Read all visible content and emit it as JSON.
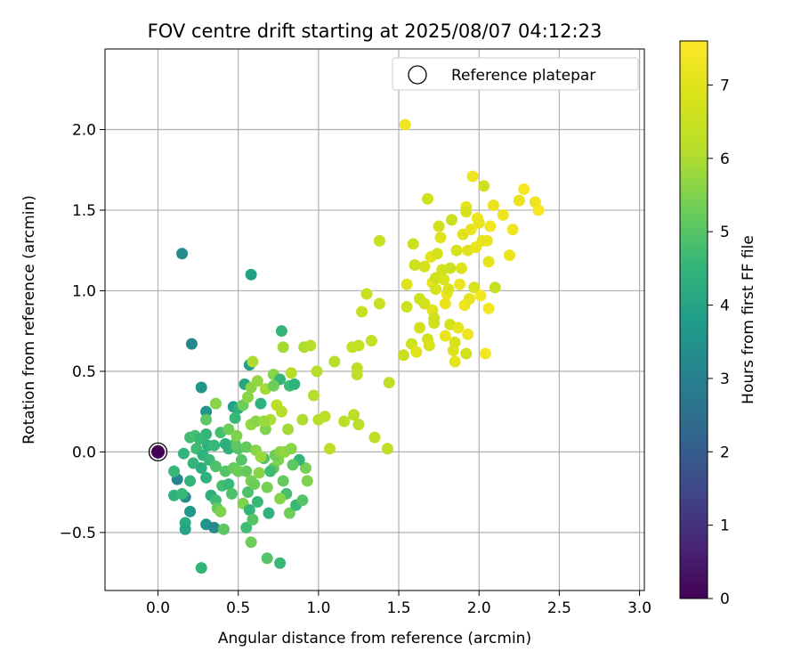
{
  "chart_data": {
    "type": "scatter",
    "title": "FOV centre drift starting at 2025/08/07 04:12:23",
    "xlabel": "Angular distance from reference (arcmin)",
    "ylabel": "Rotation from reference (arcmin)",
    "xlim": [
      -0.33,
      3.03
    ],
    "ylim": [
      -0.86,
      2.5
    ],
    "xticks": [
      0.0,
      0.5,
      1.0,
      1.5,
      2.0,
      2.5,
      3.0
    ],
    "xtick_labels": [
      "0.0",
      "0.5",
      "1.0",
      "1.5",
      "2.0",
      "2.5",
      "3.0"
    ],
    "yticks": [
      -0.5,
      0.0,
      0.5,
      1.0,
      1.5,
      2.0
    ],
    "ytick_labels": [
      "−0.5",
      "0.0",
      "0.5",
      "1.0",
      "1.5",
      "2.0"
    ],
    "grid": true,
    "legend": {
      "position": "top-right",
      "entries": [
        {
          "label": "Reference platepar",
          "marker": "open-circle"
        }
      ]
    },
    "colorbar": {
      "label": "Hours from first FF file",
      "colormap": "viridis",
      "range": [
        0,
        7.6
      ],
      "ticks": [
        0,
        1,
        2,
        3,
        4,
        5,
        6,
        7
      ],
      "tick_labels": [
        "0",
        "1",
        "2",
        "3",
        "4",
        "5",
        "6",
        "7"
      ]
    },
    "reference_point": {
      "x": 0.0,
      "y": 0.0,
      "c": 0.0
    },
    "series": [
      {
        "points": [
          [
            0.15,
            1.23,
            3.3
          ],
          [
            0.58,
            1.1,
            3.9
          ],
          [
            0.21,
            0.67,
            3.2
          ],
          [
            0.27,
            0.4,
            3.6
          ],
          [
            0.3,
            0.25,
            3.5
          ],
          [
            0.12,
            -0.17,
            3.1
          ],
          [
            0.17,
            -0.28,
            3.3
          ],
          [
            0.2,
            -0.37,
            3.6
          ],
          [
            0.17,
            -0.44,
            4.2
          ],
          [
            0.17,
            -0.48,
            4.0
          ],
          [
            0.3,
            -0.45,
            3.5
          ],
          [
            0.35,
            -0.47,
            3.3
          ],
          [
            0.27,
            -0.72,
            4.5
          ],
          [
            0.1,
            -0.27,
            4.4
          ],
          [
            0.15,
            -0.26,
            4.6
          ],
          [
            0.1,
            -0.12,
            4.6
          ],
          [
            0.16,
            -0.01,
            4.5
          ],
          [
            0.2,
            0.09,
            4.7
          ],
          [
            0.23,
            0.1,
            4.8
          ],
          [
            0.26,
            0.08,
            4.6
          ],
          [
            0.3,
            0.11,
            4.5
          ],
          [
            0.31,
            0.04,
            4.4
          ],
          [
            0.24,
            0.02,
            4.7
          ],
          [
            0.28,
            -0.02,
            4.4
          ],
          [
            0.22,
            -0.07,
            4.5
          ],
          [
            0.27,
            -0.1,
            4.3
          ],
          [
            0.32,
            -0.05,
            4.6
          ],
          [
            0.36,
            -0.09,
            4.9
          ],
          [
            0.3,
            -0.16,
            4.4
          ],
          [
            0.2,
            -0.18,
            4.5
          ],
          [
            0.33,
            -0.27,
            4.3
          ],
          [
            0.36,
            -0.3,
            4.7
          ],
          [
            0.37,
            -0.35,
            5.2
          ],
          [
            0.39,
            -0.37,
            5.5
          ],
          [
            0.41,
            -0.48,
            5.1
          ],
          [
            0.4,
            -0.21,
            4.8
          ],
          [
            0.44,
            -0.2,
            4.6
          ],
          [
            0.46,
            -0.26,
            4.9
          ],
          [
            0.42,
            -0.12,
            5.0
          ],
          [
            0.47,
            -0.1,
            5.2
          ],
          [
            0.5,
            -0.12,
            5.3
          ],
          [
            0.52,
            -0.05,
            5.0
          ],
          [
            0.55,
            -0.12,
            5.2
          ],
          [
            0.58,
            -0.18,
            5.4
          ],
          [
            0.56,
            -0.25,
            4.9
          ],
          [
            0.53,
            -0.32,
            5.5
          ],
          [
            0.55,
            -0.47,
            4.7
          ],
          [
            0.57,
            -0.36,
            4.5
          ],
          [
            0.59,
            -0.42,
            5.0
          ],
          [
            0.62,
            -0.31,
            4.6
          ],
          [
            0.6,
            -0.2,
            5.3
          ],
          [
            0.63,
            -0.13,
            5.6
          ],
          [
            0.58,
            -0.56,
            5.3
          ],
          [
            0.69,
            -0.38,
            4.4
          ],
          [
            0.68,
            -0.66,
            5.0
          ],
          [
            0.76,
            -0.69,
            4.6
          ],
          [
            0.72,
            -0.1,
            5.2
          ],
          [
            0.75,
            -0.05,
            5.5
          ],
          [
            0.78,
            -0.18,
            5.2
          ],
          [
            0.8,
            -0.26,
            4.8
          ],
          [
            0.82,
            -0.38,
            5.3
          ],
          [
            0.86,
            -0.33,
            4.6
          ],
          [
            0.9,
            -0.3,
            5.0
          ],
          [
            0.92,
            -0.1,
            5.4
          ],
          [
            0.93,
            -0.18,
            5.5
          ],
          [
            0.76,
            -0.29,
            5.6
          ],
          [
            0.68,
            -0.22,
            5.4
          ],
          [
            0.66,
            -0.04,
            4.9
          ],
          [
            0.7,
            -0.12,
            4.7
          ],
          [
            0.73,
            -0.02,
            5.3
          ],
          [
            0.76,
            0.0,
            5.6
          ],
          [
            0.79,
            0.0,
            5.7
          ],
          [
            0.83,
            0.02,
            5.6
          ],
          [
            0.88,
            -0.05,
            4.5
          ],
          [
            0.84,
            -0.08,
            5.1
          ],
          [
            0.44,
            0.02,
            4.4
          ],
          [
            0.5,
            0.02,
            5.0
          ],
          [
            0.55,
            0.03,
            5.2
          ],
          [
            0.48,
            0.05,
            5.1
          ],
          [
            0.39,
            0.12,
            4.8
          ],
          [
            0.44,
            0.14,
            5.3
          ],
          [
            0.49,
            0.1,
            5.5
          ],
          [
            0.42,
            0.05,
            4.3
          ],
          [
            0.35,
            0.04,
            4.6
          ],
          [
            0.61,
            0.01,
            5.6
          ],
          [
            0.64,
            -0.03,
            5.8
          ],
          [
            0.58,
            0.17,
            5.7
          ],
          [
            0.61,
            0.19,
            5.6
          ],
          [
            0.67,
            0.14,
            5.5
          ],
          [
            0.7,
            0.2,
            6.0
          ],
          [
            0.66,
            0.19,
            5.8
          ],
          [
            0.74,
            0.29,
            6.2
          ],
          [
            0.77,
            0.25,
            6.1
          ],
          [
            0.81,
            0.14,
            5.9
          ],
          [
            0.9,
            0.2,
            6.0
          ],
          [
            0.47,
            0.28,
            3.8
          ],
          [
            0.5,
            0.27,
            4.3
          ],
          [
            0.48,
            0.21,
            4.6
          ],
          [
            0.53,
            0.29,
            5.3
          ],
          [
            0.56,
            0.34,
            5.6
          ],
          [
            0.54,
            0.42,
            4.0
          ],
          [
            0.58,
            0.4,
            5.6
          ],
          [
            0.62,
            0.44,
            5.7
          ],
          [
            0.64,
            0.3,
            4.4
          ],
          [
            0.67,
            0.39,
            5.9
          ],
          [
            0.57,
            0.54,
            3.8
          ],
          [
            0.59,
            0.56,
            6.0
          ],
          [
            0.72,
            0.48,
            5.6
          ],
          [
            0.76,
            0.45,
            4.5
          ],
          [
            0.72,
            0.41,
            5.3
          ],
          [
            0.82,
            0.41,
            4.7
          ],
          [
            0.85,
            0.42,
            4.4
          ],
          [
            0.83,
            0.49,
            6.1
          ],
          [
            0.77,
            0.75,
            4.5
          ],
          [
            0.78,
            0.65,
            5.9
          ],
          [
            0.91,
            0.65,
            6.0
          ],
          [
            0.95,
            0.66,
            6.1
          ],
          [
            0.99,
            0.5,
            6.1
          ],
          [
            1.1,
            0.56,
            6.1
          ],
          [
            0.97,
            0.35,
            6.1
          ],
          [
            1.0,
            0.2,
            6.1
          ],
          [
            1.04,
            0.22,
            6.2
          ],
          [
            1.07,
            0.02,
            6.2
          ],
          [
            1.16,
            0.19,
            6.2
          ],
          [
            1.22,
            0.23,
            6.2
          ],
          [
            1.25,
            0.17,
            6.2
          ],
          [
            1.35,
            0.09,
            6.3
          ],
          [
            1.43,
            0.02,
            6.3
          ],
          [
            1.44,
            0.43,
            6.3
          ],
          [
            1.24,
            0.48,
            6.3
          ],
          [
            1.24,
            0.52,
            6.3
          ],
          [
            1.21,
            0.65,
            6.4
          ],
          [
            1.25,
            0.66,
            6.4
          ],
          [
            1.33,
            0.69,
            6.4
          ],
          [
            1.27,
            0.87,
            6.5
          ],
          [
            1.3,
            0.98,
            6.5
          ],
          [
            1.38,
            0.92,
            6.5
          ],
          [
            1.38,
            1.31,
            6.5
          ],
          [
            0.3,
            0.2,
            5.1
          ],
          [
            0.36,
            0.3,
            5.6
          ],
          [
            1.53,
            0.6,
            6.5
          ],
          [
            1.58,
            0.67,
            6.6
          ],
          [
            1.61,
            0.62,
            7.0
          ],
          [
            1.55,
            0.9,
            6.6
          ],
          [
            1.55,
            1.04,
            7.0
          ],
          [
            1.6,
            1.16,
            6.6
          ],
          [
            1.59,
            1.29,
            6.6
          ],
          [
            1.63,
            0.77,
            6.7
          ],
          [
            1.63,
            0.95,
            6.6
          ],
          [
            1.66,
            0.92,
            6.7
          ],
          [
            1.66,
            1.15,
            6.7
          ],
          [
            1.68,
            1.57,
            6.6
          ],
          [
            1.68,
            0.7,
            6.6
          ],
          [
            1.69,
            0.66,
            6.8
          ],
          [
            1.71,
            0.88,
            7.0
          ],
          [
            1.72,
            0.8,
            6.6
          ],
          [
            1.72,
            0.83,
            6.6
          ],
          [
            1.71,
            1.05,
            7.1
          ],
          [
            1.7,
            1.21,
            7.1
          ],
          [
            1.73,
            1.01,
            6.8
          ],
          [
            1.73,
            1.08,
            6.6
          ],
          [
            1.74,
            1.23,
            6.8
          ],
          [
            1.75,
            1.4,
            6.7
          ],
          [
            1.76,
            1.33,
            7.0
          ],
          [
            1.77,
            1.13,
            6.7
          ],
          [
            1.78,
            1.07,
            6.8
          ],
          [
            1.79,
            0.92,
            7.2
          ],
          [
            1.79,
            0.72,
            7.2
          ],
          [
            1.8,
            0.98,
            7.3
          ],
          [
            1.81,
            1.01,
            6.9
          ],
          [
            1.82,
            0.79,
            6.7
          ],
          [
            1.82,
            1.14,
            6.6
          ],
          [
            1.83,
            1.44,
            6.5
          ],
          [
            1.84,
            0.63,
            7.0
          ],
          [
            1.85,
            0.56,
            7.1
          ],
          [
            1.85,
            0.68,
            6.8
          ],
          [
            1.86,
            1.25,
            6.8
          ],
          [
            1.87,
            0.77,
            7.1
          ],
          [
            1.88,
            1.04,
            7.3
          ],
          [
            1.89,
            1.14,
            7.0
          ],
          [
            1.9,
            1.35,
            7.0
          ],
          [
            1.91,
            0.91,
            7.3
          ],
          [
            1.92,
            1.52,
            7.1
          ],
          [
            1.92,
            1.49,
            6.8
          ],
          [
            1.92,
            0.61,
            6.7
          ],
          [
            1.93,
            0.73,
            7.3
          ],
          [
            1.93,
            1.25,
            7.0
          ],
          [
            1.94,
            0.95,
            7.1
          ],
          [
            1.95,
            1.38,
            7.2
          ],
          [
            1.96,
            1.71,
            7.3
          ],
          [
            1.97,
            1.02,
            6.8
          ],
          [
            1.98,
            1.27,
            7.1
          ],
          [
            1.99,
            1.45,
            7.3
          ],
          [
            2.0,
            1.42,
            7.2
          ],
          [
            2.01,
            0.97,
            7.4
          ],
          [
            2.02,
            1.31,
            7.1
          ],
          [
            2.03,
            1.65,
            6.6
          ],
          [
            2.04,
            0.61,
            7.4
          ],
          [
            2.05,
            1.31,
            7.2
          ],
          [
            2.06,
            0.89,
            7.4
          ],
          [
            2.07,
            1.4,
            7.4
          ],
          [
            2.06,
            1.18,
            7.1
          ],
          [
            2.09,
            1.53,
            7.2
          ],
          [
            2.1,
            1.02,
            6.5
          ],
          [
            2.15,
            1.47,
            7.3
          ],
          [
            2.19,
            1.22,
            7.2
          ],
          [
            2.21,
            1.38,
            7.3
          ],
          [
            2.25,
            1.56,
            7.2
          ],
          [
            2.28,
            1.63,
            7.5
          ],
          [
            2.35,
            1.55,
            7.3
          ],
          [
            2.37,
            1.5,
            7.5
          ],
          [
            1.54,
            2.03,
            7.3
          ]
        ]
      }
    ]
  }
}
